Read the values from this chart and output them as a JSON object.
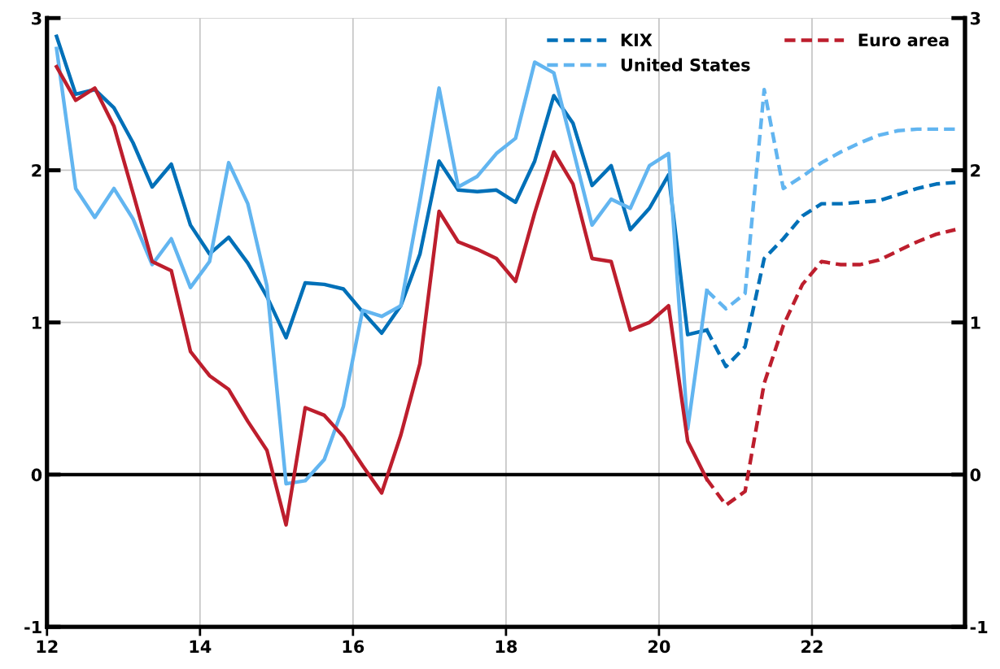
{
  "chart_data": {
    "type": "line",
    "xlim": [
      12,
      24
    ],
    "xticks": [
      12,
      14,
      16,
      18,
      20,
      22
    ],
    "ylim": [
      -1,
      3
    ],
    "yticks": [
      -1,
      0,
      1,
      2,
      3
    ],
    "y2lim": [
      -1,
      3
    ],
    "y2ticks": [
      -1,
      0,
      1,
      2,
      3
    ],
    "grid": true,
    "legend": "top right",
    "series": [
      {
        "color": "#0070b8",
        "line_style": "solid",
        "x": [
          12.125,
          12.375,
          12.625,
          12.875,
          13.125,
          13.375,
          13.625,
          13.875,
          14.125,
          14.375,
          14.625,
          14.875,
          15.125,
          15.375,
          15.625,
          15.875,
          16.125,
          16.375,
          16.625,
          16.875,
          17.125,
          17.375,
          17.625,
          17.875,
          18.125,
          18.375,
          18.625,
          18.875,
          19.125,
          19.375,
          19.625,
          19.875,
          20.125,
          20.375,
          20.625
        ],
        "values": [
          2.88,
          2.5,
          2.53,
          2.41,
          2.18,
          1.89,
          2.04,
          1.64,
          1.45,
          1.56,
          1.39,
          1.17,
          0.9,
          1.26,
          1.25,
          1.22,
          1.07,
          0.93,
          1.11,
          1.45,
          2.06,
          1.87,
          1.86,
          1.87,
          1.79,
          2.06,
          2.49,
          2.31,
          1.9,
          2.03,
          1.61,
          1.75,
          1.97,
          0.92,
          0.95
        ]
      },
      {
        "color": "#62b5f0",
        "line_style": "solid",
        "x": [
          12.125,
          12.375,
          12.625,
          12.875,
          13.125,
          13.375,
          13.625,
          13.875,
          14.125,
          14.375,
          14.625,
          14.875,
          15.125,
          15.375,
          15.625,
          15.875,
          16.125,
          16.375,
          16.625,
          16.875,
          17.125,
          17.375,
          17.625,
          17.875,
          18.125,
          18.375,
          18.625,
          18.875,
          19.125,
          19.375,
          19.625,
          19.875,
          20.125,
          20.375,
          20.625
        ],
        "values": [
          2.8,
          1.88,
          1.69,
          1.88,
          1.68,
          1.38,
          1.55,
          1.23,
          1.4,
          2.05,
          1.78,
          1.24,
          -0.06,
          -0.04,
          0.1,
          0.45,
          1.08,
          1.04,
          1.11,
          1.8,
          2.54,
          1.89,
          1.96,
          2.11,
          2.21,
          2.71,
          2.64,
          2.14,
          1.64,
          1.81,
          1.75,
          2.03,
          2.11,
          0.3,
          1.21
        ]
      },
      {
        "color": "#bd1e2d",
        "line_style": "solid",
        "x": [
          12.125,
          12.375,
          12.625,
          12.875,
          13.125,
          13.375,
          13.625,
          13.875,
          14.125,
          14.375,
          14.625,
          14.875,
          15.125,
          15.375,
          15.625,
          15.875,
          16.125,
          16.375,
          16.625,
          16.875,
          17.125,
          17.375,
          17.625,
          17.875,
          18.125,
          18.375,
          18.625,
          18.875,
          19.125,
          19.375,
          19.625,
          19.875,
          20.125,
          20.375,
          20.625
        ],
        "values": [
          2.68,
          2.46,
          2.54,
          2.29,
          1.85,
          1.4,
          1.34,
          0.81,
          0.65,
          0.56,
          0.35,
          0.16,
          -0.33,
          0.44,
          0.39,
          0.25,
          0.06,
          -0.12,
          0.26,
          0.73,
          1.73,
          1.53,
          1.48,
          1.42,
          1.27,
          1.72,
          2.12,
          1.91,
          1.42,
          1.4,
          0.95,
          1.0,
          1.11,
          0.22,
          -0.03
        ]
      },
      {
        "name": "KIX",
        "color": "#0070b8",
        "line_style": "dashed",
        "x": [
          20.625,
          20.875,
          21.125,
          21.375,
          21.625,
          21.875,
          22.125,
          22.375,
          22.625,
          22.875,
          23.125,
          23.375,
          23.625,
          23.875
        ],
        "values": [
          0.95,
          0.71,
          0.84,
          1.42,
          1.55,
          1.7,
          1.78,
          1.78,
          1.79,
          1.8,
          1.84,
          1.88,
          1.91,
          1.92
        ]
      },
      {
        "name": "United States",
        "color": "#62b5f0",
        "line_style": "dashed",
        "x": [
          20.625,
          20.875,
          21.125,
          21.375,
          21.625,
          21.875,
          22.125,
          22.375,
          22.625,
          22.875,
          23.125,
          23.375,
          23.625,
          23.875
        ],
        "values": [
          1.21,
          1.09,
          1.19,
          2.53,
          1.88,
          1.96,
          2.05,
          2.12,
          2.18,
          2.23,
          2.26,
          2.27,
          2.27,
          2.27
        ]
      },
      {
        "name": "Euro area",
        "color": "#bd1e2d",
        "line_style": "dashed",
        "x": [
          20.625,
          20.875,
          21.125,
          21.375,
          21.625,
          21.875,
          22.125,
          22.375,
          22.625,
          22.875,
          23.125,
          23.375,
          23.625,
          23.875
        ],
        "values": [
          -0.03,
          -0.2,
          -0.11,
          0.6,
          0.98,
          1.25,
          1.4,
          1.38,
          1.38,
          1.41,
          1.47,
          1.53,
          1.58,
          1.61
        ]
      }
    ],
    "ref_lines": [
      {
        "axis": "y",
        "value": 0,
        "label": null,
        "color": "#000000",
        "line_style": "solid"
      }
    ]
  }
}
